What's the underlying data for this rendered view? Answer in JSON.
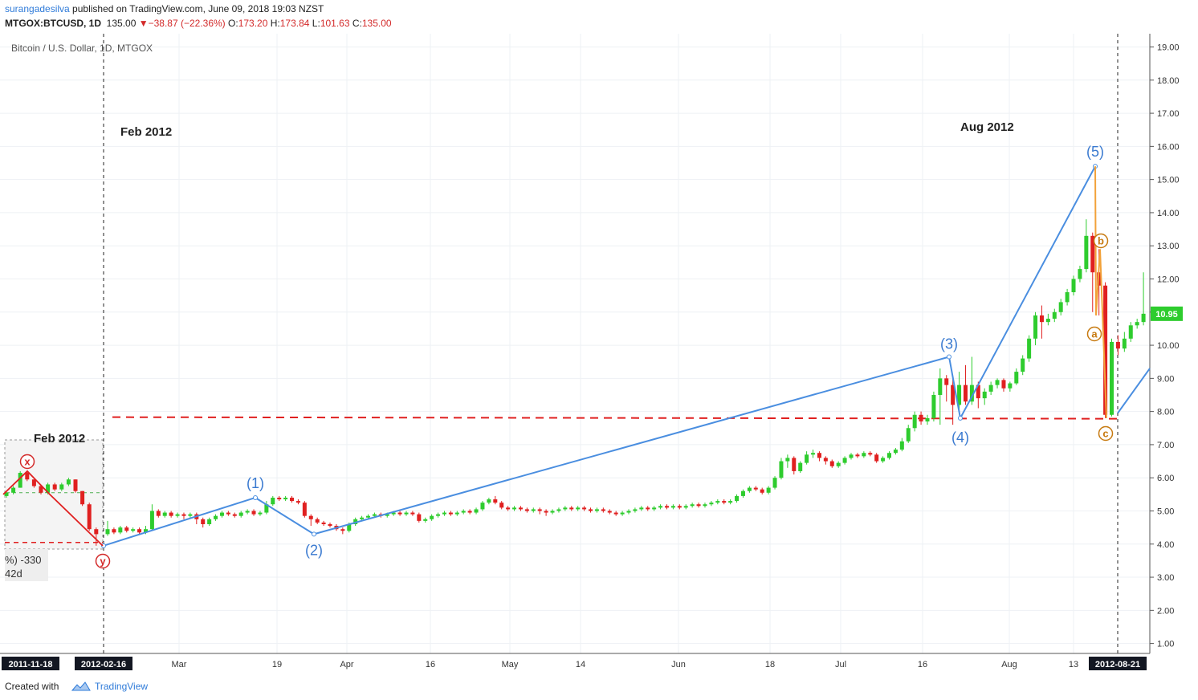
{
  "header": {
    "author": "surangadesilva",
    "published": " published on TradingView.com, June 09, 2018 19:03 NZST",
    "symbol": "MTGOX:BTCUSD, 1D",
    "last": "135.00",
    "change": "−38.87 (−22.36%)",
    "o_label": "O:",
    "o": "173.20",
    "h_label": "H:",
    "h": "173.84",
    "l_label": "L:",
    "l": "101.63",
    "c_label": "C:",
    "c": "135.00"
  },
  "footer": {
    "created": "Created with",
    "brand": "TradingView"
  },
  "colors": {
    "up": "#2ecc2e",
    "down": "#e02020",
    "wave": "#4a8ee0",
    "correction": "#f2a23a",
    "support": "#e02020",
    "price_tag": "#2ecc2e"
  },
  "chart_data": {
    "type": "candlestick",
    "title": "Bitcoin / U.S. Dollar, 1D, MTGOX",
    "ylim": [
      0.7,
      19.4
    ],
    "y_ticks": [
      "19.00",
      "18.00",
      "17.00",
      "16.00",
      "15.00",
      "14.00",
      "13.00",
      "12.00",
      "11.00",
      "10.00",
      "9.00",
      "8.00",
      "7.00",
      "6.00",
      "5.00",
      "4.00",
      "3.00",
      "2.00",
      "1.00"
    ],
    "x_ticks": [
      "2011-11-18",
      "2012-02-16",
      "Mar",
      "19",
      "Apr",
      "16",
      "May",
      "14",
      "Jun",
      "18",
      "Jul",
      "16",
      "Aug",
      "13",
      "2012-08-21"
    ],
    "last_price": "10.95",
    "annotations": [
      "Feb 2012",
      "Aug 2012",
      "Feb 2012"
    ],
    "waves": [
      "(1)",
      "(2)",
      "(3)",
      "(4)",
      "(5)"
    ],
    "correction_labels": [
      "a",
      "b",
      "c"
    ],
    "inset_labels": [
      "x",
      "y"
    ],
    "inset_stats": [
      "%) -330",
      "42d"
    ],
    "support_level": 7.83,
    "wave_points": [
      {
        "label": "start",
        "date": "2012-02-16",
        "value": 3.95
      },
      {
        "label": "(1)",
        "date": "2012-03-15",
        "value": 5.4
      },
      {
        "label": "(2)",
        "date": "2012-03-26",
        "value": 4.3
      },
      {
        "label": "(3)",
        "date": "2012-07-20",
        "value": 9.65
      },
      {
        "label": "(4)",
        "date": "2012-07-23",
        "value": 7.8
      },
      {
        "label": "(5)",
        "date": "2012-08-15",
        "value": 15.4
      }
    ],
    "correction_points": [
      {
        "label": "(5)",
        "value": 15.4
      },
      {
        "label": "a",
        "value": 10.9
      },
      {
        "label": "b",
        "value": 12.9
      },
      {
        "label": "c",
        "value": 7.8
      }
    ],
    "candles": [
      [
        5.45,
        5.55,
        5.6,
        5.4
      ],
      [
        5.55,
        5.7,
        5.75,
        5.5
      ],
      [
        5.7,
        6.15,
        6.2,
        5.7
      ],
      [
        6.15,
        5.95,
        6.2,
        5.9
      ],
      [
        5.95,
        5.75,
        5.95,
        5.7
      ],
      [
        5.75,
        5.55,
        5.8,
        5.5
      ],
      [
        5.55,
        5.8,
        5.85,
        5.5
      ],
      [
        5.8,
        5.65,
        5.85,
        5.6
      ],
      [
        5.65,
        5.8,
        5.85,
        5.6
      ],
      [
        5.8,
        5.95,
        6.0,
        5.75
      ],
      [
        5.95,
        5.6,
        5.95,
        5.55
      ],
      [
        5.6,
        5.2,
        5.6,
        5.15
      ],
      [
        5.2,
        4.45,
        5.25,
        4.4
      ],
      [
        4.45,
        4.3,
        4.5,
        3.95
      ],
      [
        4.3,
        4.45,
        4.7,
        4.25
      ],
      [
        4.45,
        4.35,
        4.5,
        4.3
      ],
      [
        4.35,
        4.5,
        4.55,
        4.3
      ],
      [
        4.5,
        4.4,
        4.55,
        4.35
      ],
      [
        4.4,
        4.45,
        4.5,
        4.35
      ],
      [
        4.45,
        4.35,
        4.5,
        4.3
      ],
      [
        4.35,
        4.45,
        4.55,
        4.3
      ],
      [
        4.45,
        5.0,
        5.2,
        4.4
      ],
      [
        5.0,
        4.85,
        5.05,
        4.8
      ],
      [
        4.85,
        4.95,
        5.0,
        4.8
      ],
      [
        4.95,
        4.85,
        5.0,
        4.8
      ],
      [
        4.85,
        4.9,
        4.95,
        4.8
      ],
      [
        4.9,
        4.85,
        4.95,
        4.75
      ],
      [
        4.85,
        4.9,
        4.95,
        4.8
      ],
      [
        4.9,
        4.75,
        4.95,
        4.6
      ],
      [
        4.75,
        4.6,
        4.8,
        4.5
      ],
      [
        4.6,
        4.75,
        4.8,
        4.55
      ],
      [
        4.75,
        4.85,
        4.9,
        4.7
      ],
      [
        4.85,
        4.95,
        5.0,
        4.8
      ],
      [
        4.95,
        4.9,
        5.0,
        4.85
      ],
      [
        4.9,
        4.85,
        4.95,
        4.8
      ],
      [
        4.85,
        4.95,
        5.0,
        4.8
      ],
      [
        4.95,
        5.0,
        5.05,
        4.9
      ],
      [
        5.0,
        4.9,
        5.05,
        4.85
      ],
      [
        4.9,
        4.95,
        5.0,
        4.85
      ],
      [
        4.95,
        5.2,
        5.3,
        4.9
      ],
      [
        5.2,
        5.4,
        5.45,
        5.15
      ],
      [
        5.4,
        5.35,
        5.45,
        5.3
      ],
      [
        5.35,
        5.4,
        5.45,
        5.3
      ],
      [
        5.4,
        5.3,
        5.45,
        5.25
      ],
      [
        5.3,
        5.25,
        5.35,
        5.2
      ],
      [
        5.25,
        4.85,
        5.3,
        4.8
      ],
      [
        4.85,
        4.75,
        4.9,
        4.55
      ],
      [
        4.75,
        4.65,
        4.8,
        4.6
      ],
      [
        4.65,
        4.6,
        4.7,
        4.55
      ],
      [
        4.6,
        4.55,
        4.65,
        4.5
      ],
      [
        4.55,
        4.45,
        4.6,
        4.4
      ],
      [
        4.45,
        4.4,
        4.5,
        4.3
      ],
      [
        4.4,
        4.6,
        4.65,
        4.35
      ],
      [
        4.6,
        4.75,
        4.8,
        4.55
      ],
      [
        4.75,
        4.8,
        4.85,
        4.7
      ],
      [
        4.8,
        4.85,
        4.9,
        4.75
      ],
      [
        4.85,
        4.9,
        4.95,
        4.8
      ],
      [
        4.9,
        4.85,
        4.95,
        4.8
      ],
      [
        4.85,
        4.9,
        4.95,
        4.8
      ],
      [
        4.9,
        4.95,
        5.0,
        4.85
      ],
      [
        4.95,
        4.9,
        5.0,
        4.85
      ],
      [
        4.9,
        4.95,
        5.0,
        4.85
      ],
      [
        4.95,
        4.9,
        5.0,
        4.85
      ],
      [
        4.9,
        4.7,
        4.95,
        4.65
      ],
      [
        4.7,
        4.75,
        4.8,
        4.65
      ],
      [
        4.75,
        4.85,
        4.9,
        4.7
      ],
      [
        4.85,
        4.9,
        4.95,
        4.8
      ],
      [
        4.9,
        4.95,
        5.0,
        4.85
      ],
      [
        4.95,
        4.9,
        5.0,
        4.85
      ],
      [
        4.9,
        4.95,
        5.0,
        4.85
      ],
      [
        4.95,
        5.0,
        5.05,
        4.9
      ],
      [
        5.0,
        4.95,
        5.05,
        4.9
      ],
      [
        4.95,
        5.05,
        5.1,
        4.9
      ],
      [
        5.05,
        5.25,
        5.3,
        5.0
      ],
      [
        5.25,
        5.35,
        5.4,
        5.2
      ],
      [
        5.35,
        5.25,
        5.45,
        5.2
      ],
      [
        5.25,
        5.1,
        5.3,
        5.05
      ],
      [
        5.1,
        5.05,
        5.15,
        5.0
      ],
      [
        5.05,
        5.1,
        5.15,
        5.0
      ],
      [
        5.1,
        5.05,
        5.15,
        5.0
      ],
      [
        5.05,
        5.0,
        5.1,
        4.95
      ],
      [
        5.0,
        5.05,
        5.1,
        4.95
      ],
      [
        5.05,
        5.0,
        5.1,
        4.9
      ],
      [
        5.0,
        4.95,
        5.05,
        4.85
      ],
      [
        4.95,
        5.0,
        5.05,
        4.9
      ],
      [
        5.0,
        5.05,
        5.1,
        4.95
      ],
      [
        5.05,
        5.1,
        5.15,
        5.0
      ],
      [
        5.1,
        5.05,
        5.15,
        5.0
      ],
      [
        5.05,
        5.1,
        5.15,
        5.0
      ],
      [
        5.1,
        5.05,
        5.15,
        5.0
      ],
      [
        5.05,
        5.0,
        5.1,
        4.95
      ],
      [
        5.0,
        5.05,
        5.1,
        4.95
      ],
      [
        5.05,
        5.0,
        5.1,
        4.95
      ],
      [
        5.0,
        4.95,
        5.05,
        4.9
      ],
      [
        4.95,
        4.9,
        5.0,
        4.85
      ],
      [
        4.9,
        4.95,
        5.0,
        4.85
      ],
      [
        4.95,
        5.0,
        5.05,
        4.9
      ],
      [
        5.0,
        5.05,
        5.1,
        4.95
      ],
      [
        5.05,
        5.1,
        5.15,
        5.0
      ],
      [
        5.1,
        5.05,
        5.15,
        5.0
      ],
      [
        5.05,
        5.1,
        5.15,
        5.0
      ],
      [
        5.1,
        5.15,
        5.2,
        5.05
      ],
      [
        5.15,
        5.1,
        5.2,
        5.05
      ],
      [
        5.1,
        5.15,
        5.2,
        5.05
      ],
      [
        5.15,
        5.1,
        5.2,
        5.05
      ],
      [
        5.1,
        5.15,
        5.2,
        5.05
      ],
      [
        5.15,
        5.2,
        5.25,
        5.1
      ],
      [
        5.2,
        5.15,
        5.25,
        5.1
      ],
      [
        5.15,
        5.2,
        5.25,
        5.1
      ],
      [
        5.2,
        5.25,
        5.3,
        5.15
      ],
      [
        5.25,
        5.3,
        5.35,
        5.2
      ],
      [
        5.3,
        5.25,
        5.35,
        5.2
      ],
      [
        5.25,
        5.3,
        5.35,
        5.2
      ],
      [
        5.3,
        5.45,
        5.5,
        5.25
      ],
      [
        5.45,
        5.6,
        5.65,
        5.4
      ],
      [
        5.6,
        5.7,
        5.75,
        5.55
      ],
      [
        5.7,
        5.65,
        5.75,
        5.6
      ],
      [
        5.65,
        5.55,
        5.7,
        5.5
      ],
      [
        5.55,
        5.7,
        5.75,
        5.5
      ],
      [
        5.7,
        6.0,
        6.05,
        5.65
      ],
      [
        6.0,
        6.5,
        6.6,
        5.95
      ],
      [
        6.5,
        6.6,
        6.7,
        6.3
      ],
      [
        6.6,
        6.2,
        6.65,
        6.1
      ],
      [
        6.2,
        6.45,
        6.5,
        6.15
      ],
      [
        6.45,
        6.7,
        6.8,
        6.4
      ],
      [
        6.7,
        6.75,
        6.85,
        6.6
      ],
      [
        6.75,
        6.6,
        6.8,
        6.5
      ],
      [
        6.6,
        6.5,
        6.65,
        6.4
      ],
      [
        6.5,
        6.35,
        6.55,
        6.3
      ],
      [
        6.35,
        6.45,
        6.5,
        6.3
      ],
      [
        6.45,
        6.6,
        6.65,
        6.4
      ],
      [
        6.6,
        6.7,
        6.75,
        6.55
      ],
      [
        6.7,
        6.65,
        6.75,
        6.6
      ],
      [
        6.65,
        6.75,
        6.8,
        6.6
      ],
      [
        6.75,
        6.7,
        6.8,
        6.65
      ],
      [
        6.7,
        6.5,
        6.75,
        6.45
      ],
      [
        6.5,
        6.6,
        6.65,
        6.45
      ],
      [
        6.6,
        6.75,
        6.8,
        6.55
      ],
      [
        6.75,
        6.85,
        6.9,
        6.7
      ],
      [
        6.85,
        7.1,
        7.2,
        6.8
      ],
      [
        7.1,
        7.5,
        7.6,
        7.05
      ],
      [
        7.5,
        7.9,
        8.0,
        7.4
      ],
      [
        7.9,
        7.7,
        8.0,
        7.6
      ],
      [
        7.7,
        7.8,
        7.9,
        7.6
      ],
      [
        7.8,
        8.5,
        8.6,
        7.7
      ],
      [
        8.5,
        9.0,
        9.3,
        7.6
      ],
      [
        9.0,
        8.8,
        9.1,
        8.3
      ],
      [
        8.8,
        8.2,
        9.0,
        7.6
      ],
      [
        8.2,
        8.8,
        9.2,
        8.0
      ],
      [
        8.8,
        8.3,
        9.4,
        8.2
      ],
      [
        8.3,
        8.8,
        9.65,
        8.2
      ],
      [
        8.8,
        8.4,
        8.9,
        8.1
      ],
      [
        8.4,
        8.6,
        8.7,
        8.2
      ],
      [
        8.6,
        8.8,
        8.9,
        8.5
      ],
      [
        8.8,
        8.95,
        9.0,
        8.7
      ],
      [
        8.95,
        8.7,
        9.0,
        8.6
      ],
      [
        8.7,
        8.85,
        8.9,
        8.6
      ],
      [
        8.85,
        9.2,
        9.3,
        8.8
      ],
      [
        9.2,
        9.6,
        9.7,
        9.1
      ],
      [
        9.6,
        10.2,
        10.3,
        9.5
      ],
      [
        10.2,
        10.9,
        11.0,
        10.0
      ],
      [
        10.9,
        10.7,
        11.2,
        10.2
      ],
      [
        10.7,
        10.8,
        10.95,
        10.6
      ],
      [
        10.8,
        11.0,
        11.1,
        10.7
      ],
      [
        11.0,
        11.3,
        11.4,
        10.9
      ],
      [
        11.3,
        11.6,
        11.7,
        11.2
      ],
      [
        11.6,
        12.0,
        12.1,
        11.5
      ],
      [
        12.0,
        12.3,
        12.4,
        11.9
      ],
      [
        12.3,
        13.3,
        13.8,
        12.2
      ],
      [
        13.3,
        12.2,
        13.4,
        11.0
      ],
      [
        12.2,
        11.8,
        12.9,
        10.9
      ],
      [
        11.8,
        7.9,
        11.9,
        7.8
      ],
      [
        7.9,
        10.1,
        10.2,
        7.85
      ],
      [
        10.1,
        9.9,
        10.3,
        9.7
      ],
      [
        9.9,
        10.2,
        10.4,
        9.8
      ],
      [
        10.2,
        10.6,
        10.7,
        10.1
      ],
      [
        10.6,
        10.7,
        10.8,
        10.5
      ],
      [
        10.7,
        10.95,
        12.2,
        10.6
      ]
    ]
  }
}
